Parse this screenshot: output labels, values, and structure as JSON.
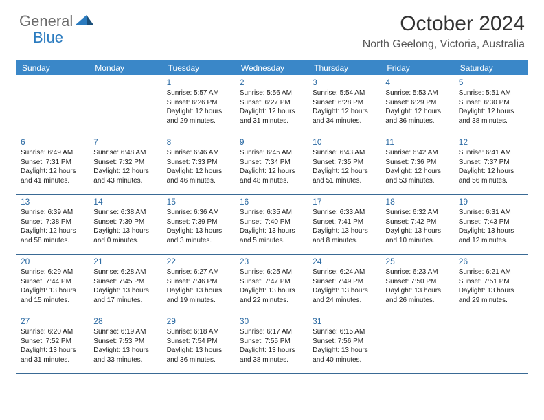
{
  "logo": {
    "text1": "General",
    "text2": "Blue"
  },
  "title": "October 2024",
  "location": "North Geelong, Victoria, Australia",
  "colors": {
    "header_bg": "#3a87c8",
    "header_text": "#ffffff",
    "daynum_color": "#2b6aa3",
    "border_color": "#3a6a95",
    "logo_gray": "#6b6b6b",
    "logo_blue": "#2b7bbf"
  },
  "day_names": [
    "Sunday",
    "Monday",
    "Tuesday",
    "Wednesday",
    "Thursday",
    "Friday",
    "Saturday"
  ],
  "weeks": [
    [
      null,
      null,
      {
        "n": "1",
        "sr": "Sunrise: 5:57 AM",
        "ss": "Sunset: 6:26 PM",
        "d1": "Daylight: 12 hours",
        "d2": "and 29 minutes."
      },
      {
        "n": "2",
        "sr": "Sunrise: 5:56 AM",
        "ss": "Sunset: 6:27 PM",
        "d1": "Daylight: 12 hours",
        "d2": "and 31 minutes."
      },
      {
        "n": "3",
        "sr": "Sunrise: 5:54 AM",
        "ss": "Sunset: 6:28 PM",
        "d1": "Daylight: 12 hours",
        "d2": "and 34 minutes."
      },
      {
        "n": "4",
        "sr": "Sunrise: 5:53 AM",
        "ss": "Sunset: 6:29 PM",
        "d1": "Daylight: 12 hours",
        "d2": "and 36 minutes."
      },
      {
        "n": "5",
        "sr": "Sunrise: 5:51 AM",
        "ss": "Sunset: 6:30 PM",
        "d1": "Daylight: 12 hours",
        "d2": "and 38 minutes."
      }
    ],
    [
      {
        "n": "6",
        "sr": "Sunrise: 6:49 AM",
        "ss": "Sunset: 7:31 PM",
        "d1": "Daylight: 12 hours",
        "d2": "and 41 minutes."
      },
      {
        "n": "7",
        "sr": "Sunrise: 6:48 AM",
        "ss": "Sunset: 7:32 PM",
        "d1": "Daylight: 12 hours",
        "d2": "and 43 minutes."
      },
      {
        "n": "8",
        "sr": "Sunrise: 6:46 AM",
        "ss": "Sunset: 7:33 PM",
        "d1": "Daylight: 12 hours",
        "d2": "and 46 minutes."
      },
      {
        "n": "9",
        "sr": "Sunrise: 6:45 AM",
        "ss": "Sunset: 7:34 PM",
        "d1": "Daylight: 12 hours",
        "d2": "and 48 minutes."
      },
      {
        "n": "10",
        "sr": "Sunrise: 6:43 AM",
        "ss": "Sunset: 7:35 PM",
        "d1": "Daylight: 12 hours",
        "d2": "and 51 minutes."
      },
      {
        "n": "11",
        "sr": "Sunrise: 6:42 AM",
        "ss": "Sunset: 7:36 PM",
        "d1": "Daylight: 12 hours",
        "d2": "and 53 minutes."
      },
      {
        "n": "12",
        "sr": "Sunrise: 6:41 AM",
        "ss": "Sunset: 7:37 PM",
        "d1": "Daylight: 12 hours",
        "d2": "and 56 minutes."
      }
    ],
    [
      {
        "n": "13",
        "sr": "Sunrise: 6:39 AM",
        "ss": "Sunset: 7:38 PM",
        "d1": "Daylight: 12 hours",
        "d2": "and 58 minutes."
      },
      {
        "n": "14",
        "sr": "Sunrise: 6:38 AM",
        "ss": "Sunset: 7:39 PM",
        "d1": "Daylight: 13 hours",
        "d2": "and 0 minutes."
      },
      {
        "n": "15",
        "sr": "Sunrise: 6:36 AM",
        "ss": "Sunset: 7:39 PM",
        "d1": "Daylight: 13 hours",
        "d2": "and 3 minutes."
      },
      {
        "n": "16",
        "sr": "Sunrise: 6:35 AM",
        "ss": "Sunset: 7:40 PM",
        "d1": "Daylight: 13 hours",
        "d2": "and 5 minutes."
      },
      {
        "n": "17",
        "sr": "Sunrise: 6:33 AM",
        "ss": "Sunset: 7:41 PM",
        "d1": "Daylight: 13 hours",
        "d2": "and 8 minutes."
      },
      {
        "n": "18",
        "sr": "Sunrise: 6:32 AM",
        "ss": "Sunset: 7:42 PM",
        "d1": "Daylight: 13 hours",
        "d2": "and 10 minutes."
      },
      {
        "n": "19",
        "sr": "Sunrise: 6:31 AM",
        "ss": "Sunset: 7:43 PM",
        "d1": "Daylight: 13 hours",
        "d2": "and 12 minutes."
      }
    ],
    [
      {
        "n": "20",
        "sr": "Sunrise: 6:29 AM",
        "ss": "Sunset: 7:44 PM",
        "d1": "Daylight: 13 hours",
        "d2": "and 15 minutes."
      },
      {
        "n": "21",
        "sr": "Sunrise: 6:28 AM",
        "ss": "Sunset: 7:45 PM",
        "d1": "Daylight: 13 hours",
        "d2": "and 17 minutes."
      },
      {
        "n": "22",
        "sr": "Sunrise: 6:27 AM",
        "ss": "Sunset: 7:46 PM",
        "d1": "Daylight: 13 hours",
        "d2": "and 19 minutes."
      },
      {
        "n": "23",
        "sr": "Sunrise: 6:25 AM",
        "ss": "Sunset: 7:47 PM",
        "d1": "Daylight: 13 hours",
        "d2": "and 22 minutes."
      },
      {
        "n": "24",
        "sr": "Sunrise: 6:24 AM",
        "ss": "Sunset: 7:49 PM",
        "d1": "Daylight: 13 hours",
        "d2": "and 24 minutes."
      },
      {
        "n": "25",
        "sr": "Sunrise: 6:23 AM",
        "ss": "Sunset: 7:50 PM",
        "d1": "Daylight: 13 hours",
        "d2": "and 26 minutes."
      },
      {
        "n": "26",
        "sr": "Sunrise: 6:21 AM",
        "ss": "Sunset: 7:51 PM",
        "d1": "Daylight: 13 hours",
        "d2": "and 29 minutes."
      }
    ],
    [
      {
        "n": "27",
        "sr": "Sunrise: 6:20 AM",
        "ss": "Sunset: 7:52 PM",
        "d1": "Daylight: 13 hours",
        "d2": "and 31 minutes."
      },
      {
        "n": "28",
        "sr": "Sunrise: 6:19 AM",
        "ss": "Sunset: 7:53 PM",
        "d1": "Daylight: 13 hours",
        "d2": "and 33 minutes."
      },
      {
        "n": "29",
        "sr": "Sunrise: 6:18 AM",
        "ss": "Sunset: 7:54 PM",
        "d1": "Daylight: 13 hours",
        "d2": "and 36 minutes."
      },
      {
        "n": "30",
        "sr": "Sunrise: 6:17 AM",
        "ss": "Sunset: 7:55 PM",
        "d1": "Daylight: 13 hours",
        "d2": "and 38 minutes."
      },
      {
        "n": "31",
        "sr": "Sunrise: 6:15 AM",
        "ss": "Sunset: 7:56 PM",
        "d1": "Daylight: 13 hours",
        "d2": "and 40 minutes."
      },
      null,
      null
    ]
  ]
}
